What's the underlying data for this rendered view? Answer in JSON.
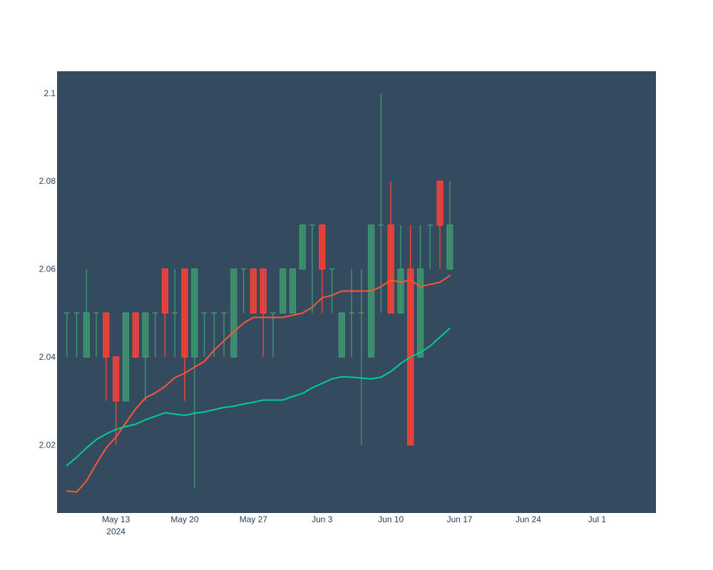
{
  "chart_data": {
    "type": "candlestick",
    "title": "",
    "xlabel": "",
    "ylabel": "",
    "ylim": [
      2.0045,
      2.105
    ],
    "grid": false,
    "colors": {
      "plot_background": "#344a5f",
      "increasing": "#3d9970",
      "decreasing": "#ff4136",
      "ma_short": "#ff5733",
      "ma_long": "#00cc96"
    },
    "y_ticks": [
      {
        "value": 2.02,
        "label": "2.02"
      },
      {
        "value": 2.04,
        "label": "2.04"
      },
      {
        "value": 2.06,
        "label": "2.06"
      },
      {
        "value": 2.08,
        "label": "2.08"
      },
      {
        "value": 2.1,
        "label": "2.1"
      }
    ],
    "x_ticks": [
      {
        "date": "2024-05-13",
        "label": "May 13",
        "sublabel": "2024"
      },
      {
        "date": "2024-05-20",
        "label": "May 20",
        "sublabel": ""
      },
      {
        "date": "2024-05-27",
        "label": "May 27",
        "sublabel": ""
      },
      {
        "date": "2024-06-03",
        "label": "Jun 3",
        "sublabel": ""
      },
      {
        "date": "2024-06-10",
        "label": "Jun 10",
        "sublabel": ""
      },
      {
        "date": "2024-06-17",
        "label": "Jun 17",
        "sublabel": ""
      },
      {
        "date": "2024-06-24",
        "label": "Jun 24",
        "sublabel": ""
      },
      {
        "date": "2024-07-01",
        "label": "Jul 1",
        "sublabel": ""
      }
    ],
    "x_range": [
      "2024-05-07",
      "2024-07-07"
    ],
    "candles": [
      {
        "date": "2024-05-08",
        "open": 2.05,
        "high": 2.05,
        "low": 2.04,
        "close": 2.05
      },
      {
        "date": "2024-05-09",
        "open": 2.05,
        "high": 2.05,
        "low": 2.04,
        "close": 2.05
      },
      {
        "date": "2024-05-10",
        "open": 2.04,
        "high": 2.06,
        "low": 2.04,
        "close": 2.05
      },
      {
        "date": "2024-05-11",
        "open": 2.05,
        "high": 2.05,
        "low": 2.04,
        "close": 2.05
      },
      {
        "date": "2024-05-12",
        "open": 2.05,
        "high": 2.05,
        "low": 2.03,
        "close": 2.04
      },
      {
        "date": "2024-05-13",
        "open": 2.04,
        "high": 2.04,
        "low": 2.02,
        "close": 2.03
      },
      {
        "date": "2024-05-14",
        "open": 2.03,
        "high": 2.05,
        "low": 2.03,
        "close": 2.05
      },
      {
        "date": "2024-05-15",
        "open": 2.05,
        "high": 2.05,
        "low": 2.04,
        "close": 2.04
      },
      {
        "date": "2024-05-16",
        "open": 2.04,
        "high": 2.05,
        "low": 2.03,
        "close": 2.05
      },
      {
        "date": "2024-05-17",
        "open": 2.05,
        "high": 2.05,
        "low": 2.04,
        "close": 2.05
      },
      {
        "date": "2024-05-18",
        "open": 2.06,
        "high": 2.06,
        "low": 2.04,
        "close": 2.05
      },
      {
        "date": "2024-05-19",
        "open": 2.05,
        "high": 2.06,
        "low": 2.04,
        "close": 2.05
      },
      {
        "date": "2024-05-20",
        "open": 2.06,
        "high": 2.06,
        "low": 2.03,
        "close": 2.04
      },
      {
        "date": "2024-05-21",
        "open": 2.04,
        "high": 2.06,
        "low": 2.01,
        "close": 2.06
      },
      {
        "date": "2024-05-22",
        "open": 2.05,
        "high": 2.05,
        "low": 2.04,
        "close": 2.05
      },
      {
        "date": "2024-05-23",
        "open": 2.05,
        "high": 2.05,
        "low": 2.04,
        "close": 2.05
      },
      {
        "date": "2024-05-24",
        "open": 2.05,
        "high": 2.05,
        "low": 2.04,
        "close": 2.05
      },
      {
        "date": "2024-05-25",
        "open": 2.04,
        "high": 2.06,
        "low": 2.04,
        "close": 2.06
      },
      {
        "date": "2024-05-26",
        "open": 2.06,
        "high": 2.06,
        "low": 2.05,
        "close": 2.06
      },
      {
        "date": "2024-05-27",
        "open": 2.06,
        "high": 2.06,
        "low": 2.05,
        "close": 2.05
      },
      {
        "date": "2024-05-28",
        "open": 2.06,
        "high": 2.06,
        "low": 2.04,
        "close": 2.05
      },
      {
        "date": "2024-05-29",
        "open": 2.05,
        "high": 2.05,
        "low": 2.04,
        "close": 2.05
      },
      {
        "date": "2024-05-30",
        "open": 2.05,
        "high": 2.06,
        "low": 2.05,
        "close": 2.06
      },
      {
        "date": "2024-05-31",
        "open": 2.05,
        "high": 2.06,
        "low": 2.05,
        "close": 2.06
      },
      {
        "date": "2024-06-01",
        "open": 2.06,
        "high": 2.07,
        "low": 2.06,
        "close": 2.07
      },
      {
        "date": "2024-06-02",
        "open": 2.07,
        "high": 2.07,
        "low": 2.05,
        "close": 2.07
      },
      {
        "date": "2024-06-03",
        "open": 2.07,
        "high": 2.07,
        "low": 2.05,
        "close": 2.06
      },
      {
        "date": "2024-06-04",
        "open": 2.06,
        "high": 2.06,
        "low": 2.05,
        "close": 2.06
      },
      {
        "date": "2024-06-05",
        "open": 2.04,
        "high": 2.05,
        "low": 2.04,
        "close": 2.05
      },
      {
        "date": "2024-06-06",
        "open": 2.05,
        "high": 2.06,
        "low": 2.04,
        "close": 2.05
      },
      {
        "date": "2024-06-07",
        "open": 2.05,
        "high": 2.06,
        "low": 2.02,
        "close": 2.05
      },
      {
        "date": "2024-06-08",
        "open": 2.04,
        "high": 2.07,
        "low": 2.04,
        "close": 2.07
      },
      {
        "date": "2024-06-09",
        "open": 2.07,
        "high": 2.1,
        "low": 2.05,
        "close": 2.07
      },
      {
        "date": "2024-06-10",
        "open": 2.07,
        "high": 2.08,
        "low": 2.05,
        "close": 2.05
      },
      {
        "date": "2024-06-11",
        "open": 2.05,
        "high": 2.07,
        "low": 2.05,
        "close": 2.06
      },
      {
        "date": "2024-06-12",
        "open": 2.06,
        "high": 2.07,
        "low": 2.02,
        "close": 2.02
      },
      {
        "date": "2024-06-13",
        "open": 2.04,
        "high": 2.07,
        "low": 2.04,
        "close": 2.06
      },
      {
        "date": "2024-06-14",
        "open": 2.07,
        "high": 2.07,
        "low": 2.06,
        "close": 2.07
      },
      {
        "date": "2024-06-15",
        "open": 2.08,
        "high": 2.08,
        "low": 2.06,
        "close": 2.07
      },
      {
        "date": "2024-06-16",
        "open": 2.06,
        "high": 2.08,
        "low": 2.06,
        "close": 2.07
      }
    ],
    "series": [
      {
        "color": "#ff5733",
        "values": [
          {
            "date": "2024-05-08",
            "value": 2.0095
          },
          {
            "date": "2024-05-09",
            "value": 2.0093
          },
          {
            "date": "2024-05-10",
            "value": 2.0118
          },
          {
            "date": "2024-05-11",
            "value": 2.0157
          },
          {
            "date": "2024-05-12",
            "value": 2.0193
          },
          {
            "date": "2024-05-13",
            "value": 2.0218
          },
          {
            "date": "2024-05-14",
            "value": 2.025
          },
          {
            "date": "2024-05-15",
            "value": 2.0282
          },
          {
            "date": "2024-05-16",
            "value": 2.0307
          },
          {
            "date": "2024-05-17",
            "value": 2.0318
          },
          {
            "date": "2024-05-18",
            "value": 2.0333
          },
          {
            "date": "2024-05-19",
            "value": 2.0353
          },
          {
            "date": "2024-05-20",
            "value": 2.0363
          },
          {
            "date": "2024-05-21",
            "value": 2.0377
          },
          {
            "date": "2024-05-22",
            "value": 2.039
          },
          {
            "date": "2024-05-23",
            "value": 2.0415
          },
          {
            "date": "2024-05-24",
            "value": 2.0437
          },
          {
            "date": "2024-05-25",
            "value": 2.0457
          },
          {
            "date": "2024-05-26",
            "value": 2.0477
          },
          {
            "date": "2024-05-27",
            "value": 2.049
          },
          {
            "date": "2024-05-28",
            "value": 2.049
          },
          {
            "date": "2024-05-29",
            "value": 2.049
          },
          {
            "date": "2024-05-30",
            "value": 2.049
          },
          {
            "date": "2024-05-31",
            "value": 2.0495
          },
          {
            "date": "2024-06-01",
            "value": 2.05
          },
          {
            "date": "2024-06-02",
            "value": 2.0513
          },
          {
            "date": "2024-06-03",
            "value": 2.0535
          },
          {
            "date": "2024-06-04",
            "value": 2.054
          },
          {
            "date": "2024-06-05",
            "value": 2.055
          },
          {
            "date": "2024-06-06",
            "value": 2.055
          },
          {
            "date": "2024-06-07",
            "value": 2.055
          },
          {
            "date": "2024-06-08",
            "value": 2.055
          },
          {
            "date": "2024-06-09",
            "value": 2.056
          },
          {
            "date": "2024-06-10",
            "value": 2.0575
          },
          {
            "date": "2024-06-11",
            "value": 2.057
          },
          {
            "date": "2024-06-12",
            "value": 2.0575
          },
          {
            "date": "2024-06-13",
            "value": 2.056
          },
          {
            "date": "2024-06-14",
            "value": 2.0565
          },
          {
            "date": "2024-06-15",
            "value": 2.057
          },
          {
            "date": "2024-06-16",
            "value": 2.0585
          }
        ]
      },
      {
        "color": "#00cc96",
        "values": [
          {
            "date": "2024-05-08",
            "value": 2.0153
          },
          {
            "date": "2024-05-09",
            "value": 2.0172
          },
          {
            "date": "2024-05-10",
            "value": 2.0193
          },
          {
            "date": "2024-05-11",
            "value": 2.0212
          },
          {
            "date": "2024-05-12",
            "value": 2.0225
          },
          {
            "date": "2024-05-13",
            "value": 2.0235
          },
          {
            "date": "2024-05-14",
            "value": 2.0242
          },
          {
            "date": "2024-05-15",
            "value": 2.0247
          },
          {
            "date": "2024-05-16",
            "value": 2.0257
          },
          {
            "date": "2024-05-17",
            "value": 2.0265
          },
          {
            "date": "2024-05-18",
            "value": 2.0273
          },
          {
            "date": "2024-05-19",
            "value": 2.027
          },
          {
            "date": "2024-05-20",
            "value": 2.0267
          },
          {
            "date": "2024-05-21",
            "value": 2.0272
          },
          {
            "date": "2024-05-22",
            "value": 2.0275
          },
          {
            "date": "2024-05-23",
            "value": 2.028
          },
          {
            "date": "2024-05-24",
            "value": 2.0285
          },
          {
            "date": "2024-05-25",
            "value": 2.0288
          },
          {
            "date": "2024-05-26",
            "value": 2.0293
          },
          {
            "date": "2024-05-27",
            "value": 2.0297
          },
          {
            "date": "2024-05-28",
            "value": 2.0302
          },
          {
            "date": "2024-05-29",
            "value": 2.0302
          },
          {
            "date": "2024-05-30",
            "value": 2.0302
          },
          {
            "date": "2024-05-31",
            "value": 2.031
          },
          {
            "date": "2024-06-01",
            "value": 2.0317
          },
          {
            "date": "2024-06-02",
            "value": 2.033
          },
          {
            "date": "2024-06-03",
            "value": 2.034
          },
          {
            "date": "2024-06-04",
            "value": 2.035
          },
          {
            "date": "2024-06-05",
            "value": 2.0355
          },
          {
            "date": "2024-06-06",
            "value": 2.0354
          },
          {
            "date": "2024-06-07",
            "value": 2.0352
          },
          {
            "date": "2024-06-08",
            "value": 2.035
          },
          {
            "date": "2024-06-09",
            "value": 2.0354
          },
          {
            "date": "2024-06-10",
            "value": 2.0367
          },
          {
            "date": "2024-06-11",
            "value": 2.0385
          },
          {
            "date": "2024-06-12",
            "value": 2.04
          },
          {
            "date": "2024-06-13",
            "value": 2.041
          },
          {
            "date": "2024-06-14",
            "value": 2.0425
          },
          {
            "date": "2024-06-15",
            "value": 2.0445
          },
          {
            "date": "2024-06-16",
            "value": 2.0465
          }
        ]
      }
    ]
  }
}
